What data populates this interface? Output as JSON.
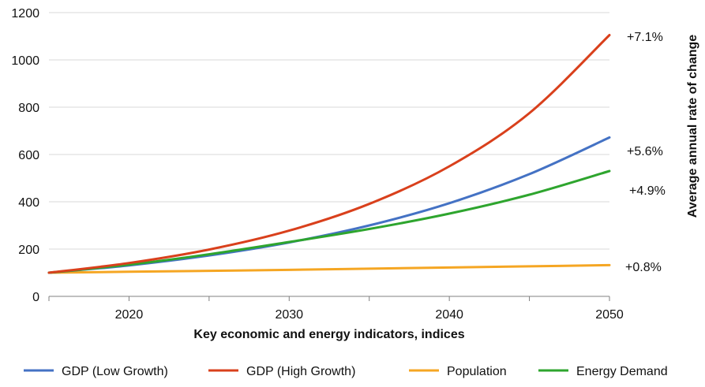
{
  "chart_data": {
    "type": "line",
    "title": "",
    "xlabel": "Key economic and energy indicators, indices",
    "ylabel_right": "Average annual rate of change",
    "xlim": [
      2015,
      2050
    ],
    "ylim": [
      0,
      1200
    ],
    "xticks": [
      2020,
      2030,
      2040,
      2050
    ],
    "yticks": [
      0,
      200,
      400,
      600,
      800,
      1000,
      1200
    ],
    "grid": "horizontal",
    "legend_position": "bottom",
    "x": [
      2015,
      2020,
      2025,
      2030,
      2035,
      2040,
      2045,
      2050
    ],
    "series": [
      {
        "name": "GDP (Low Growth)",
        "color": "#4472C4",
        "values": [
          100,
          131,
          173,
          228,
          300,
          394,
          517,
          672
        ],
        "annotation": "+5.6%"
      },
      {
        "name": "GDP (High Growth)",
        "color": "#D9401C",
        "values": [
          100,
          141,
          198,
          278,
          391,
          550,
          775,
          1105
        ],
        "annotation": "+7.1%"
      },
      {
        "name": "Population",
        "color": "#F5A623",
        "values": [
          100,
          104,
          108,
          112,
          117,
          122,
          127,
          132
        ],
        "annotation": "+0.8%"
      },
      {
        "name": "Energy Demand",
        "color": "#2EA52E",
        "values": [
          100,
          134,
          178,
          230,
          285,
          350,
          430,
          530
        ],
        "annotation": "+4.9%"
      }
    ]
  }
}
